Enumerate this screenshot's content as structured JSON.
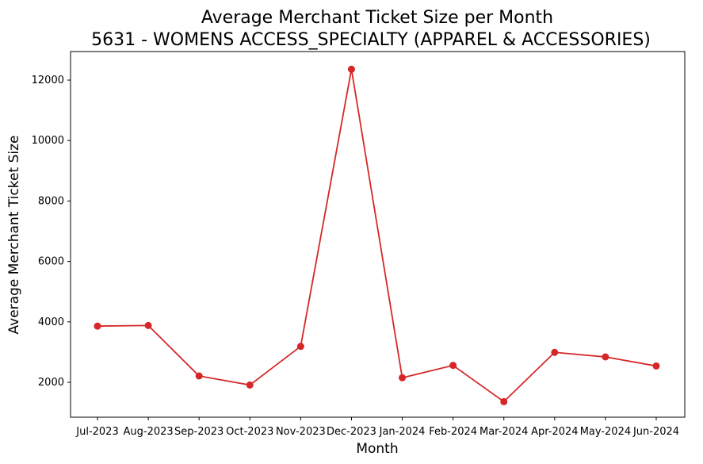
{
  "chart_data": {
    "type": "line",
    "title": "Average Merchant Ticket Size per Month",
    "subtitle": "5631 - WOMENS ACCESS_SPECIALTY (APPAREL & ACCESSORIES)",
    "xlabel": "Month",
    "ylabel": "Average Merchant Ticket Size",
    "categories": [
      "Jul-2023",
      "Aug-2023",
      "Sep-2023",
      "Oct-2023",
      "Nov-2023",
      "Dec-2023",
      "Jan-2024",
      "Feb-2024",
      "Mar-2024",
      "Apr-2024",
      "May-2024",
      "Jun-2024"
    ],
    "series": [
      {
        "color": "#d62728",
        "marker": "circle",
        "values": [
          3860,
          3880,
          2210,
          1910,
          3190,
          12360,
          2150,
          2560,
          1360,
          2990,
          2840,
          2540
        ]
      }
    ],
    "yticks": [
      2000,
      4000,
      6000,
      8000,
      10000,
      12000
    ],
    "ylim": [
      800,
      12900
    ],
    "grid": false,
    "legend": "none"
  }
}
